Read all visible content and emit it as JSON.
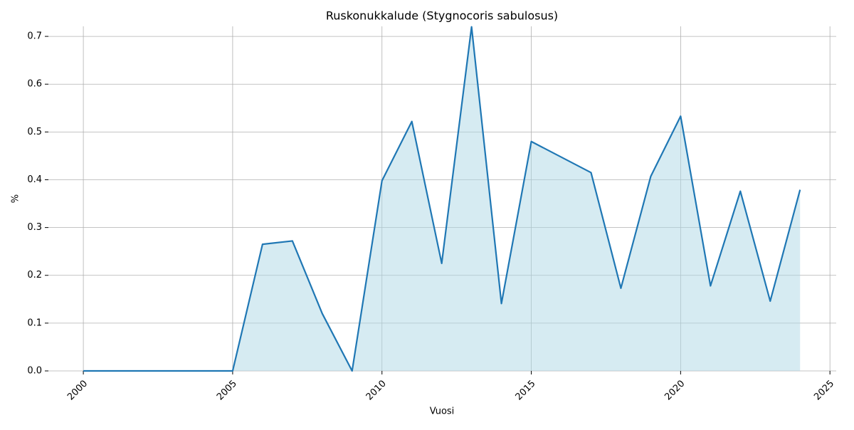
{
  "chart_data": {
    "type": "line",
    "title": "Ruskonukkalude (Stygnocoris sabulosus)",
    "x_label": "Vuosi",
    "y_label": "%",
    "x": [
      2000,
      2005,
      2006,
      2007,
      2008,
      2009,
      2010,
      2011,
      2012,
      2013,
      2014,
      2015,
      2017,
      2018,
      2019,
      2020,
      2021,
      2022,
      2023,
      2024
    ],
    "series": [
      {
        "name": "Ruskonukkalude",
        "color": "#1f77b4",
        "fill": "#add8e6",
        "values": [
          0,
          0,
          0.265,
          0.272,
          0.12,
          0,
          0.398,
          0.522,
          0.225,
          0.72,
          0.141,
          0.48,
          0.415,
          0.173,
          0.407,
          0.533,
          0.178,
          0.376,
          0.146,
          0.379
        ]
      }
    ],
    "xlim": [
      1998.83,
      2025.21
    ],
    "ylim": [
      0,
      0.721
    ],
    "xticks": [
      2000,
      2005,
      2010,
      2015,
      2020,
      2025
    ],
    "yticks": [
      {
        "value": 0,
        "label": "0.0"
      },
      0.1,
      0.2,
      0.3,
      0.4,
      0.5,
      0.6,
      0.7
    ],
    "grid": true
  }
}
